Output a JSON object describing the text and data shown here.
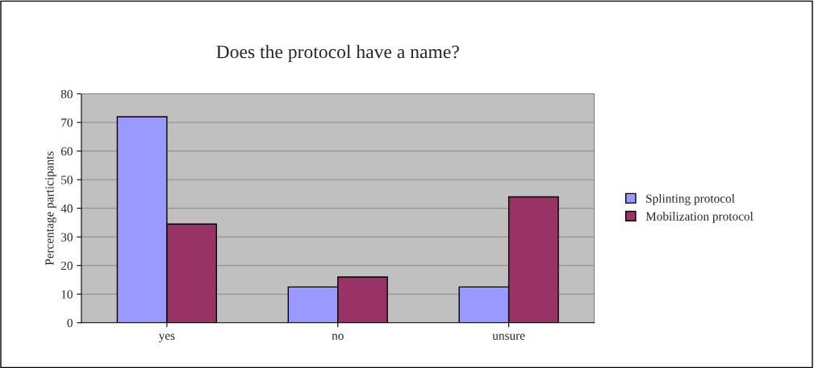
{
  "chart_data": {
    "type": "bar",
    "title": "Does the protocol have a name?",
    "ylabel": "Percentage participants",
    "categories": [
      "yes",
      "no",
      "unsure"
    ],
    "series": [
      {
        "name": "Splinting protocol",
        "color": "#9999ff",
        "values": [
          72,
          12.5,
          12.5
        ]
      },
      {
        "name": "Mobilization protocol",
        "color": "#993366",
        "values": [
          34.5,
          16,
          44
        ]
      }
    ],
    "ylim": [
      0,
      80
    ],
    "yticks": [
      0,
      10,
      20,
      30,
      40,
      50,
      60,
      70,
      80
    ],
    "grid": "y",
    "legend": "right"
  }
}
